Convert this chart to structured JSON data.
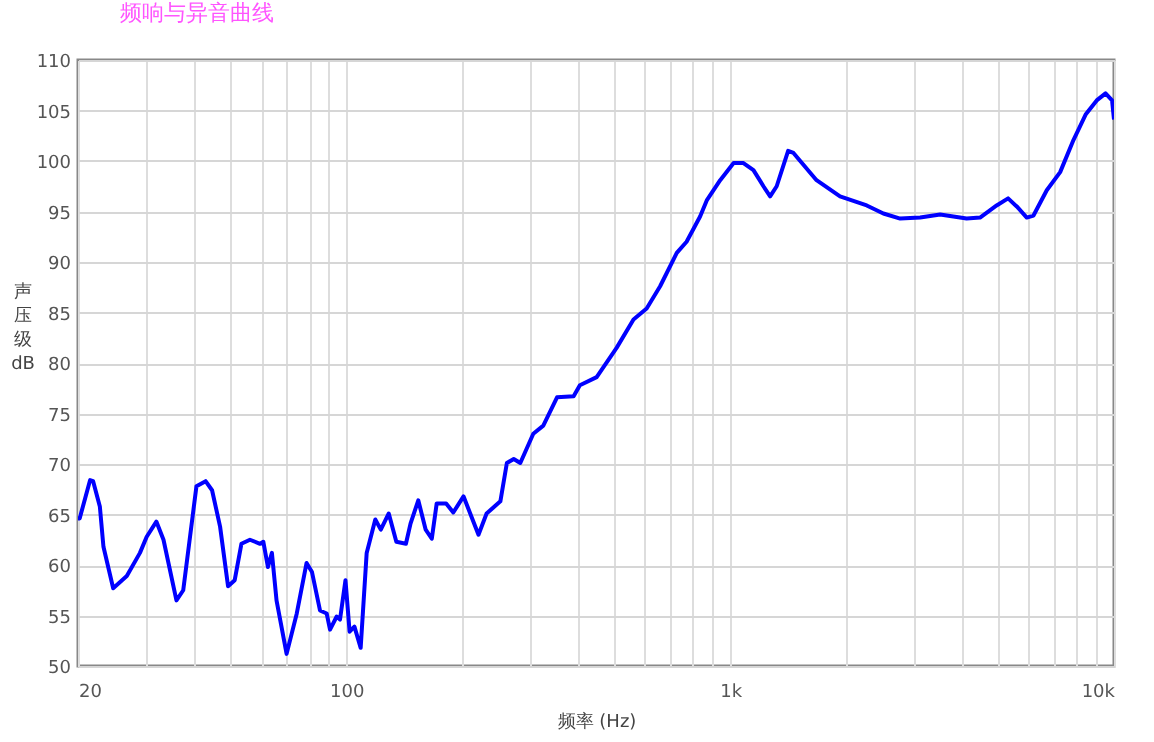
{
  "chart_data": {
    "type": "line",
    "title": "频响与异音曲线",
    "xlabel": "频率 (Hz)",
    "ylabel": "声压级 dB",
    "log": "x",
    "grid": true,
    "marker": "none",
    "line_style": "solid",
    "xlim": [
      20,
      10000
    ],
    "ylim": [
      50,
      110
    ],
    "xticks": [
      20,
      {
        "value": 30,
        "label": null
      },
      {
        "value": 40,
        "label": null
      },
      {
        "value": 50,
        "label": null
      },
      {
        "value": 60,
        "label": null
      },
      {
        "value": 70,
        "label": null
      },
      {
        "value": 80,
        "label": null
      },
      {
        "value": 90,
        "label": null
      },
      100,
      {
        "value": 200,
        "label": null
      },
      {
        "value": 300,
        "label": null
      },
      {
        "value": 400,
        "label": null
      },
      {
        "value": 500,
        "label": null
      },
      {
        "value": 600,
        "label": null
      },
      {
        "value": 700,
        "label": null
      },
      {
        "value": 800,
        "label": null
      },
      {
        "value": 900,
        "label": null
      },
      {
        "value": 1000,
        "label": "1k"
      },
      {
        "value": 2000,
        "label": null
      },
      {
        "value": 3000,
        "label": null
      },
      {
        "value": 4000,
        "label": null
      },
      {
        "value": 5000,
        "label": null
      },
      {
        "value": 6000,
        "label": null
      },
      {
        "value": 7000,
        "label": null
      },
      {
        "value": 8000,
        "label": null
      },
      {
        "value": 9000,
        "label": null
      },
      {
        "value": 10000,
        "label": "10k"
      }
    ],
    "yticks": [
      50,
      55,
      60,
      65,
      70,
      75,
      80,
      85,
      90,
      95,
      100,
      105,
      110
    ],
    "series": [
      {
        "color": "#0000ff",
        "x": [
          20,
          20.2,
          21.5,
          21.9,
          22.8,
          23.3,
          24.7,
          26.8,
          29,
          30.2,
          32,
          33.4,
          36.1,
          37.6,
          40.7,
          43,
          44.7,
          46.9,
          49.2,
          51.2,
          53.3,
          56.1,
          59.6,
          60.8,
          62.5,
          64,
          65.8,
          69.9,
          74.3,
          78.8,
          81.4,
          85.4,
          88.9,
          90.7,
          94.4,
          96.3,
          99.5,
          102,
          105,
          109,
          113,
          119,
          123,
          129,
          135,
          143,
          147,
          154,
          161,
          167,
          172,
          182,
          190,
          202,
          221,
          232,
          252,
          262,
          273,
          284,
          307,
          326,
          354,
          391,
          406,
          449,
          506,
          560,
          606,
          657,
          726,
          770,
          835,
          869,
          942,
          1021,
          1083,
          1150,
          1221,
          1271,
          1322,
          1416,
          1462,
          1679,
          1933,
          2269,
          2507,
          2773,
          3126,
          3524,
          4131,
          4478,
          4946,
          5298,
          5580,
          5926,
          6169,
          6681,
          7240,
          7846,
          8434,
          9015,
          9505,
          9885,
          10000
        ],
        "values": [
          64.6,
          64.6,
          68.4,
          68.3,
          65.8,
          61.8,
          57.7,
          58.9,
          61.2,
          62.8,
          64.3,
          62.5,
          56.5,
          57.5,
          67.8,
          68.3,
          67.4,
          63.8,
          57.9,
          58.5,
          62.1,
          62.5,
          62.1,
          62.3,
          59.8,
          61.2,
          56.5,
          51.2,
          55.2,
          60.2,
          59.3,
          55.5,
          55.2,
          53.6,
          54.9,
          54.6,
          58.5,
          53.4,
          53.9,
          51.8,
          61.2,
          64.5,
          63.5,
          65.1,
          62.3,
          62.1,
          64.1,
          66.4,
          63.5,
          62.6,
          66.1,
          66.1,
          65.2,
          66.8,
          63,
          65.1,
          66.3,
          70.1,
          70.5,
          70.1,
          73,
          73.8,
          76.6,
          76.7,
          77.8,
          78.6,
          81.5,
          84.3,
          85.4,
          87.6,
          90.9,
          92,
          94.5,
          96.1,
          98.1,
          99.8,
          99.8,
          99.1,
          97.5,
          96.5,
          97.5,
          101,
          100.8,
          98.1,
          96.5,
          95.6,
          94.8,
          94.3,
          94.4,
          94.7,
          94.3,
          94.4,
          95.6,
          96.3,
          95.5,
          94.4,
          94.6,
          97.1,
          98.9,
          102.1,
          104.6,
          106,
          106.7,
          106,
          104.1
        ]
      }
    ]
  }
}
